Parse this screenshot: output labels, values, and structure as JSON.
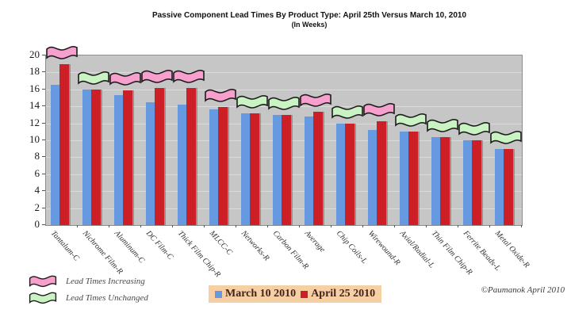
{
  "title": "Passive Component Lead Times By Product Type: April 25th Versus March 10, 2010",
  "subtitle": "(In Weeks)",
  "chart_data": {
    "type": "bar",
    "categories": [
      "Tantalum-C",
      "Nichrome Film-R",
      "Aluminum-C",
      "DC Film-C",
      "Thick Film Chip-R",
      "MLCC-C",
      "Networks-R",
      "Carbon Film-R",
      "Average",
      "Chip Coils-L",
      "Wirewound-R",
      "Axial/Radial-L",
      "Thin Film Chip-R",
      "Ferrite Beads-L",
      "Metal Oxide-R"
    ],
    "series": [
      {
        "name": "March 10 2010",
        "color": "#6699e0",
        "values": [
          16.5,
          16.0,
          15.3,
          14.5,
          14.2,
          13.6,
          13.2,
          13.0,
          12.8,
          12.0,
          11.2,
          11.0,
          10.4,
          10.0,
          9.0
        ]
      },
      {
        "name": "April 25 2010",
        "color": "#cc2026",
        "values": [
          19.0,
          16.0,
          15.9,
          16.2,
          16.2,
          13.9,
          13.2,
          13.0,
          13.4,
          12.0,
          12.2,
          11.0,
          10.4,
          10.0,
          9.0
        ]
      }
    ],
    "flag_status": [
      "increasing",
      "unchanged",
      "increasing",
      "increasing",
      "increasing",
      "increasing",
      "unchanged",
      "unchanged",
      "increasing",
      "unchanged",
      "increasing",
      "unchanged",
      "unchanged",
      "unchanged",
      "unchanged"
    ],
    "ylim": [
      0,
      20
    ],
    "ytick_step": 2,
    "grid": "horizontal",
    "plot_bg": "#c6c6c6",
    "legend_position": "bottom-center"
  },
  "flag_legend": {
    "increasing_label": "Lead Times Increasing",
    "unchanged_label": "Lead Times Unchanged",
    "increasing_color": "#f8a0cd",
    "unchanged_color": "#c9f3c2",
    "outline_color": "#1c1c1c"
  },
  "series_legend": {
    "background": "#f6cfa4",
    "items": [
      {
        "label": "March 10 2010",
        "color": "#6699e0"
      },
      {
        "label": "April 25 2010",
        "color": "#cc2026"
      }
    ]
  },
  "credit": "©Paumanok April 2010"
}
